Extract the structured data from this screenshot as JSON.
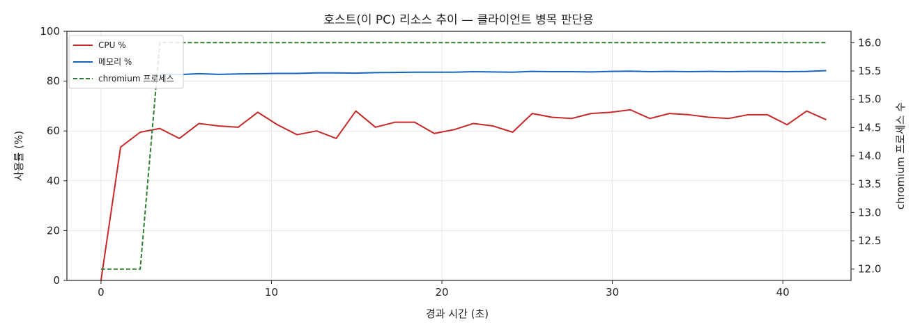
{
  "chart_data": {
    "type": "line",
    "title": "호스트(이 PC) 리소스 추이 — 클라이언트 병목 판단용",
    "xlabel": "경과 시간 (초)",
    "ylabel": "사용률 (%)",
    "y2label": "chromium 프로세스 수",
    "xlim": [
      -2,
      44
    ],
    "ylim": [
      0,
      100
    ],
    "y2lim": [
      11.8,
      16.2
    ],
    "xticks": [
      0,
      10,
      20,
      30,
      40
    ],
    "yticks": [
      0,
      20,
      40,
      60,
      80,
      100
    ],
    "y2ticks": [
      "12.0",
      "12.5",
      "13.0",
      "13.5",
      "14.0",
      "14.5",
      "15.0",
      "15.5",
      "16.0"
    ],
    "grid": true,
    "legend_position": "top-left",
    "series": [
      {
        "name": "CPU %",
        "axis": "left",
        "color": "#c62828",
        "style": "solid",
        "x": [
          0,
          1.15,
          2.3,
          3.45,
          4.6,
          5.75,
          6.9,
          8.05,
          9.2,
          10.35,
          11.5,
          12.65,
          13.8,
          14.95,
          16.1,
          17.25,
          18.4,
          19.55,
          20.7,
          21.85,
          23.0,
          24.15,
          25.3,
          26.45,
          27.6,
          28.75,
          29.9,
          31.05,
          32.2,
          33.35,
          34.5,
          35.65,
          36.8,
          37.95,
          39.1,
          40.25,
          41.4,
          42.55
        ],
        "values": [
          0,
          53.5,
          59.5,
          61,
          57,
          63,
          62,
          61.5,
          67.5,
          62.5,
          58.5,
          60,
          57,
          68,
          61.5,
          63.5,
          63.5,
          59,
          60.5,
          63,
          62,
          59.5,
          67,
          65.5,
          65,
          67,
          67.5,
          68.5,
          65,
          67,
          66.5,
          65.5,
          65,
          66.5,
          66.5,
          62.5,
          68,
          64.5
        ]
      },
      {
        "name": "메모리 %",
        "axis": "left",
        "color": "#1565c0",
        "style": "solid",
        "x": [
          3.45,
          4.6,
          5.75,
          6.9,
          8.05,
          9.2,
          10.35,
          11.5,
          12.65,
          13.8,
          14.95,
          16.1,
          17.25,
          18.4,
          19.55,
          20.7,
          21.85,
          23.0,
          24.15,
          25.3,
          26.45,
          27.6,
          28.75,
          29.9,
          31.05,
          32.2,
          33.35,
          34.5,
          35.65,
          36.8,
          37.95,
          39.1,
          40.25,
          41.4,
          42.55
        ],
        "values": [
          82.8,
          82.6,
          83,
          82.7,
          82.9,
          83,
          83.1,
          83.1,
          83.3,
          83.3,
          83.2,
          83.4,
          83.5,
          83.6,
          83.6,
          83.6,
          83.8,
          83.7,
          83.6,
          83.9,
          83.8,
          83.8,
          83.7,
          83.9,
          84,
          83.8,
          83.9,
          83.8,
          83.9,
          83.8,
          83.9,
          83.9,
          83.8,
          83.9,
          84.2
        ]
      },
      {
        "name": "chromium 프로세스",
        "axis": "right",
        "color": "#2e7d32",
        "style": "dashed",
        "x": [
          0,
          1.15,
          2.3,
          3.45,
          4.6,
          5.75,
          6.9,
          8.05,
          9.2,
          10.35,
          11.5,
          12.65,
          13.8,
          14.95,
          16.1,
          17.25,
          18.4,
          19.55,
          20.7,
          21.85,
          23.0,
          24.15,
          25.3,
          26.45,
          27.6,
          28.75,
          29.9,
          31.05,
          32.2,
          33.35,
          34.5,
          35.65,
          36.8,
          37.95,
          39.1,
          40.25,
          41.4,
          42.55
        ],
        "values": [
          12,
          12,
          12,
          16,
          16,
          16,
          16,
          16,
          16,
          16,
          16,
          16,
          16,
          16,
          16,
          16,
          16,
          16,
          16,
          16,
          16,
          16,
          16,
          16,
          16,
          16,
          16,
          16,
          16,
          16,
          16,
          16,
          16,
          16,
          16,
          16,
          16,
          16
        ]
      }
    ]
  }
}
